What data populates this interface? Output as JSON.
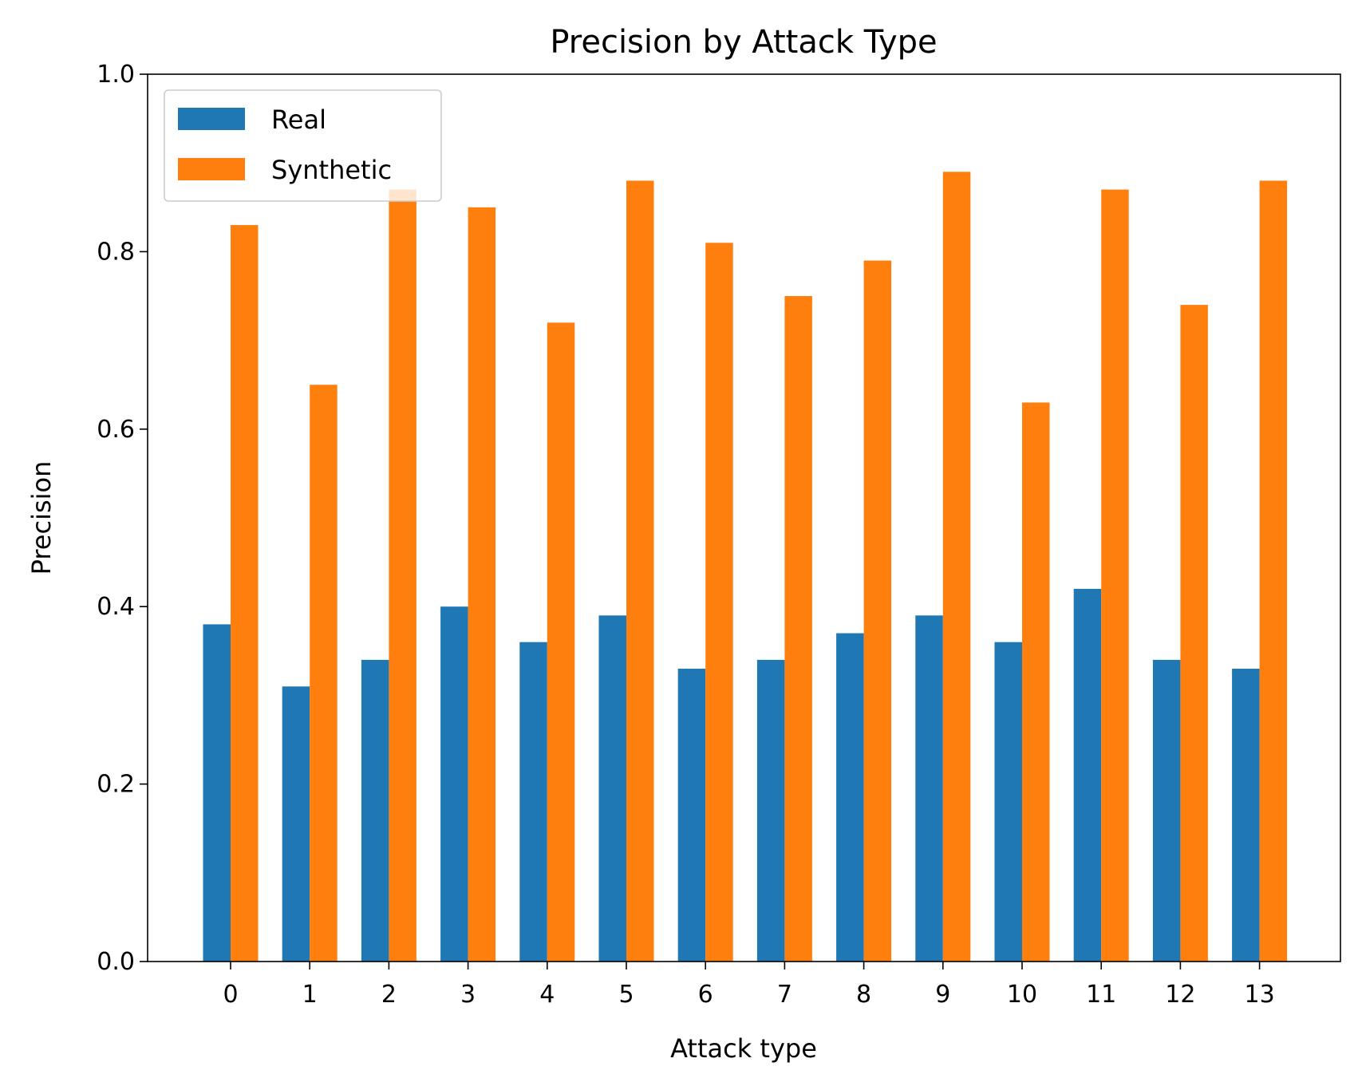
{
  "chart_data": {
    "type": "bar",
    "title": "Precision by Attack Type",
    "xlabel": "Attack type",
    "ylabel": "Precision",
    "ylim": [
      0,
      1.0
    ],
    "yticks": [
      "0.0",
      "0.2",
      "0.4",
      "0.6",
      "0.8",
      "1.0"
    ],
    "categories": [
      "0",
      "1",
      "2",
      "3",
      "4",
      "5",
      "6",
      "7",
      "8",
      "9",
      "10",
      "11",
      "12",
      "13"
    ],
    "series": [
      {
        "name": "Real",
        "color": "#1f77b4",
        "values": [
          0.38,
          0.31,
          0.34,
          0.4,
          0.36,
          0.39,
          0.33,
          0.34,
          0.37,
          0.39,
          0.36,
          0.42,
          0.34,
          0.33
        ]
      },
      {
        "name": "Synthetic",
        "color": "#ff7f0e",
        "values": [
          0.83,
          0.65,
          0.87,
          0.85,
          0.72,
          0.88,
          0.81,
          0.75,
          0.79,
          0.89,
          0.63,
          0.87,
          0.74,
          0.88
        ]
      }
    ],
    "grid": false,
    "legend_position": "top-left"
  }
}
